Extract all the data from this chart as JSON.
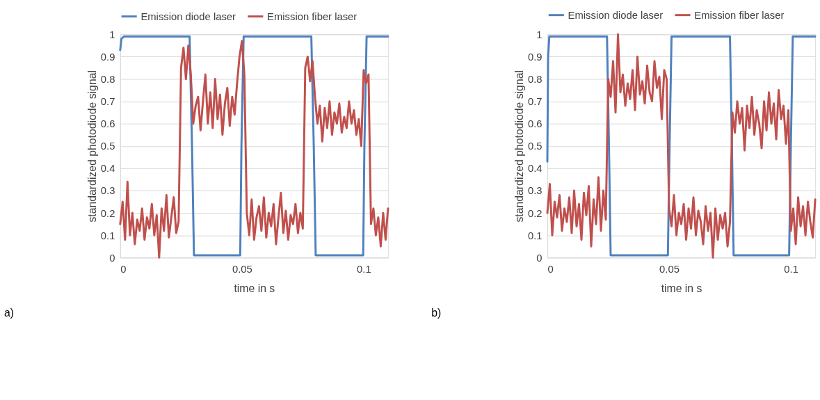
{
  "chart_data": [
    {
      "type": "line",
      "xlabel": "time in s",
      "ylabel": "standardized photodiode signal",
      "annotations": [
        "a)"
      ],
      "legend": "top",
      "grid": "y",
      "line_style": "solid",
      "marker": "none",
      "xlim": [
        0,
        0.11
      ],
      "xticks": [
        0,
        0.05,
        0.1
      ],
      "ylim": [
        0,
        1
      ],
      "yticks": [
        0,
        0.1,
        0.2,
        0.3,
        0.4,
        0.5,
        0.6,
        0.7,
        0.8,
        0.9,
        1
      ],
      "x": [
        0,
        0.001,
        0.002,
        0.003,
        0.004,
        0.005,
        0.006,
        0.007,
        0.008,
        0.009,
        0.01,
        0.011,
        0.012,
        0.013,
        0.014,
        0.015,
        0.016,
        0.017,
        0.018,
        0.019,
        0.02,
        0.021,
        0.022,
        0.023,
        0.024,
        0.025,
        0.026,
        0.027,
        0.028,
        0.029,
        0.03,
        0.031,
        0.032,
        0.033,
        0.034,
        0.035,
        0.036,
        0.037,
        0.038,
        0.039,
        0.04,
        0.041,
        0.042,
        0.043,
        0.044,
        0.045,
        0.046,
        0.047,
        0.048,
        0.049,
        0.05,
        0.051,
        0.052,
        0.053,
        0.054,
        0.055,
        0.056,
        0.057,
        0.058,
        0.059,
        0.06,
        0.061,
        0.062,
        0.063,
        0.064,
        0.065,
        0.066,
        0.067,
        0.068,
        0.069,
        0.07,
        0.071,
        0.072,
        0.073,
        0.074,
        0.075,
        0.076,
        0.077,
        0.078,
        0.079,
        0.08,
        0.081,
        0.082,
        0.083,
        0.084,
        0.085,
        0.086,
        0.087,
        0.088,
        0.089,
        0.09,
        0.091,
        0.092,
        0.093,
        0.094,
        0.095,
        0.096,
        0.097,
        0.098,
        0.099,
        0.1,
        0.101,
        0.102,
        0.103,
        0.104,
        0.105,
        0.106,
        0.107,
        0.108,
        0.109,
        0.11
      ],
      "series": [
        {
          "name": "Emission diode laser",
          "color": "#4f81bd",
          "x": [
            0,
            0.0005,
            0.0015,
            0.0285,
            0.0295,
            0.0303,
            0.0493,
            0.0498,
            0.0507,
            0.0785,
            0.0795,
            0.0803,
            0.0998,
            0.1003,
            0.1012,
            0.11
          ],
          "values": [
            0.93,
            0.98,
            0.99,
            0.99,
            0.5,
            0.01,
            0.01,
            0.5,
            0.99,
            0.99,
            0.5,
            0.01,
            0.01,
            0.5,
            0.99,
            0.99
          ]
        },
        {
          "name": "Emission fiber laser",
          "color": "#c0504d",
          "values": [
            0.15,
            0.25,
            0.08,
            0.34,
            0.1,
            0.2,
            0.06,
            0.17,
            0.12,
            0.22,
            0.08,
            0.18,
            0.13,
            0.24,
            0.1,
            0.19,
            0.0,
            0.22,
            0.12,
            0.28,
            0.09,
            0.18,
            0.27,
            0.11,
            0.16,
            0.85,
            0.94,
            0.8,
            0.95,
            0.82,
            0.6,
            0.68,
            0.72,
            0.57,
            0.7,
            0.82,
            0.6,
            0.74,
            0.58,
            0.8,
            0.62,
            0.73,
            0.55,
            0.69,
            0.76,
            0.59,
            0.72,
            0.64,
            0.78,
            0.9,
            0.97,
            0.82,
            0.2,
            0.1,
            0.26,
            0.08,
            0.18,
            0.23,
            0.12,
            0.27,
            0.09,
            0.2,
            0.14,
            0.24,
            0.06,
            0.18,
            0.29,
            0.11,
            0.21,
            0.08,
            0.19,
            0.15,
            0.24,
            0.11,
            0.2,
            0.13,
            0.85,
            0.9,
            0.79,
            0.88,
            0.72,
            0.6,
            0.68,
            0.52,
            0.67,
            0.58,
            0.7,
            0.55,
            0.65,
            0.6,
            0.69,
            0.56,
            0.63,
            0.58,
            0.7,
            0.6,
            0.66,
            0.55,
            0.62,
            0.5,
            0.84,
            0.78,
            0.82,
            0.15,
            0.22,
            0.1,
            0.18,
            0.05,
            0.2,
            0.08,
            0.22
          ]
        }
      ]
    },
    {
      "type": "line",
      "xlabel": "time in s",
      "ylabel": "standardized photodiode signal",
      "annotations": [
        "b)"
      ],
      "legend": "top",
      "grid": "y",
      "line_style": "solid",
      "marker": "none",
      "xlim": [
        0,
        0.11
      ],
      "xticks": [
        0,
        0.05,
        0.1
      ],
      "ylim": [
        0,
        1
      ],
      "yticks": [
        0,
        0.1,
        0.2,
        0.3,
        0.4,
        0.5,
        0.6,
        0.7,
        0.8,
        0.9,
        1
      ],
      "x": [
        0,
        0.001,
        0.002,
        0.003,
        0.004,
        0.005,
        0.006,
        0.007,
        0.008,
        0.009,
        0.01,
        0.011,
        0.012,
        0.013,
        0.014,
        0.015,
        0.016,
        0.017,
        0.018,
        0.019,
        0.02,
        0.021,
        0.022,
        0.023,
        0.024,
        0.025,
        0.026,
        0.027,
        0.028,
        0.029,
        0.03,
        0.031,
        0.032,
        0.033,
        0.034,
        0.035,
        0.036,
        0.037,
        0.038,
        0.039,
        0.04,
        0.041,
        0.042,
        0.043,
        0.044,
        0.045,
        0.046,
        0.047,
        0.048,
        0.049,
        0.05,
        0.051,
        0.052,
        0.053,
        0.054,
        0.055,
        0.056,
        0.057,
        0.058,
        0.059,
        0.06,
        0.061,
        0.062,
        0.063,
        0.064,
        0.065,
        0.066,
        0.067,
        0.068,
        0.069,
        0.07,
        0.071,
        0.072,
        0.073,
        0.074,
        0.075,
        0.076,
        0.077,
        0.078,
        0.079,
        0.08,
        0.081,
        0.082,
        0.083,
        0.084,
        0.085,
        0.086,
        0.087,
        0.088,
        0.089,
        0.09,
        0.091,
        0.092,
        0.093,
        0.094,
        0.095,
        0.096,
        0.097,
        0.098,
        0.099,
        0.1,
        0.101,
        0.102,
        0.103,
        0.104,
        0.105,
        0.106,
        0.107,
        0.108,
        0.109,
        0.11
      ],
      "series": [
        {
          "name": "Emission diode laser",
          "color": "#4f81bd",
          "x": [
            0,
            0.0003,
            0.0008,
            0.0245,
            0.0253,
            0.026,
            0.0495,
            0.0502,
            0.051,
            0.075,
            0.0758,
            0.0765,
            0.0993,
            0.1,
            0.1008,
            0.11
          ],
          "values": [
            0.43,
            0.9,
            0.99,
            0.99,
            0.5,
            0.01,
            0.01,
            0.5,
            0.99,
            0.99,
            0.5,
            0.01,
            0.01,
            0.5,
            0.99,
            0.99
          ]
        },
        {
          "name": "Emission fiber laser",
          "color": "#c0504d",
          "values": [
            0.2,
            0.33,
            0.1,
            0.25,
            0.18,
            0.28,
            0.12,
            0.22,
            0.16,
            0.27,
            0.11,
            0.3,
            0.14,
            0.24,
            0.08,
            0.29,
            0.19,
            0.32,
            0.05,
            0.26,
            0.15,
            0.36,
            0.12,
            0.3,
            0.17,
            0.8,
            0.72,
            0.88,
            0.65,
            1.0,
            0.74,
            0.82,
            0.68,
            0.78,
            0.71,
            0.84,
            0.66,
            0.9,
            0.73,
            0.79,
            0.69,
            0.86,
            0.74,
            0.7,
            0.88,
            0.76,
            0.81,
            0.62,
            0.84,
            0.8,
            0.22,
            0.14,
            0.28,
            0.1,
            0.2,
            0.15,
            0.24,
            0.08,
            0.22,
            0.13,
            0.27,
            0.1,
            0.21,
            0.16,
            0.06,
            0.23,
            0.12,
            0.2,
            0.0,
            0.22,
            0.08,
            0.19,
            0.13,
            0.2,
            0.05,
            0.16,
            0.65,
            0.56,
            0.7,
            0.6,
            0.67,
            0.48,
            0.68,
            0.58,
            0.72,
            0.55,
            0.66,
            0.6,
            0.49,
            0.7,
            0.57,
            0.74,
            0.6,
            0.69,
            0.53,
            0.75,
            0.62,
            0.68,
            0.51,
            0.66,
            0.12,
            0.22,
            0.06,
            0.27,
            0.14,
            0.23,
            0.1,
            0.25,
            0.16,
            0.09,
            0.26
          ]
        }
      ]
    }
  ]
}
